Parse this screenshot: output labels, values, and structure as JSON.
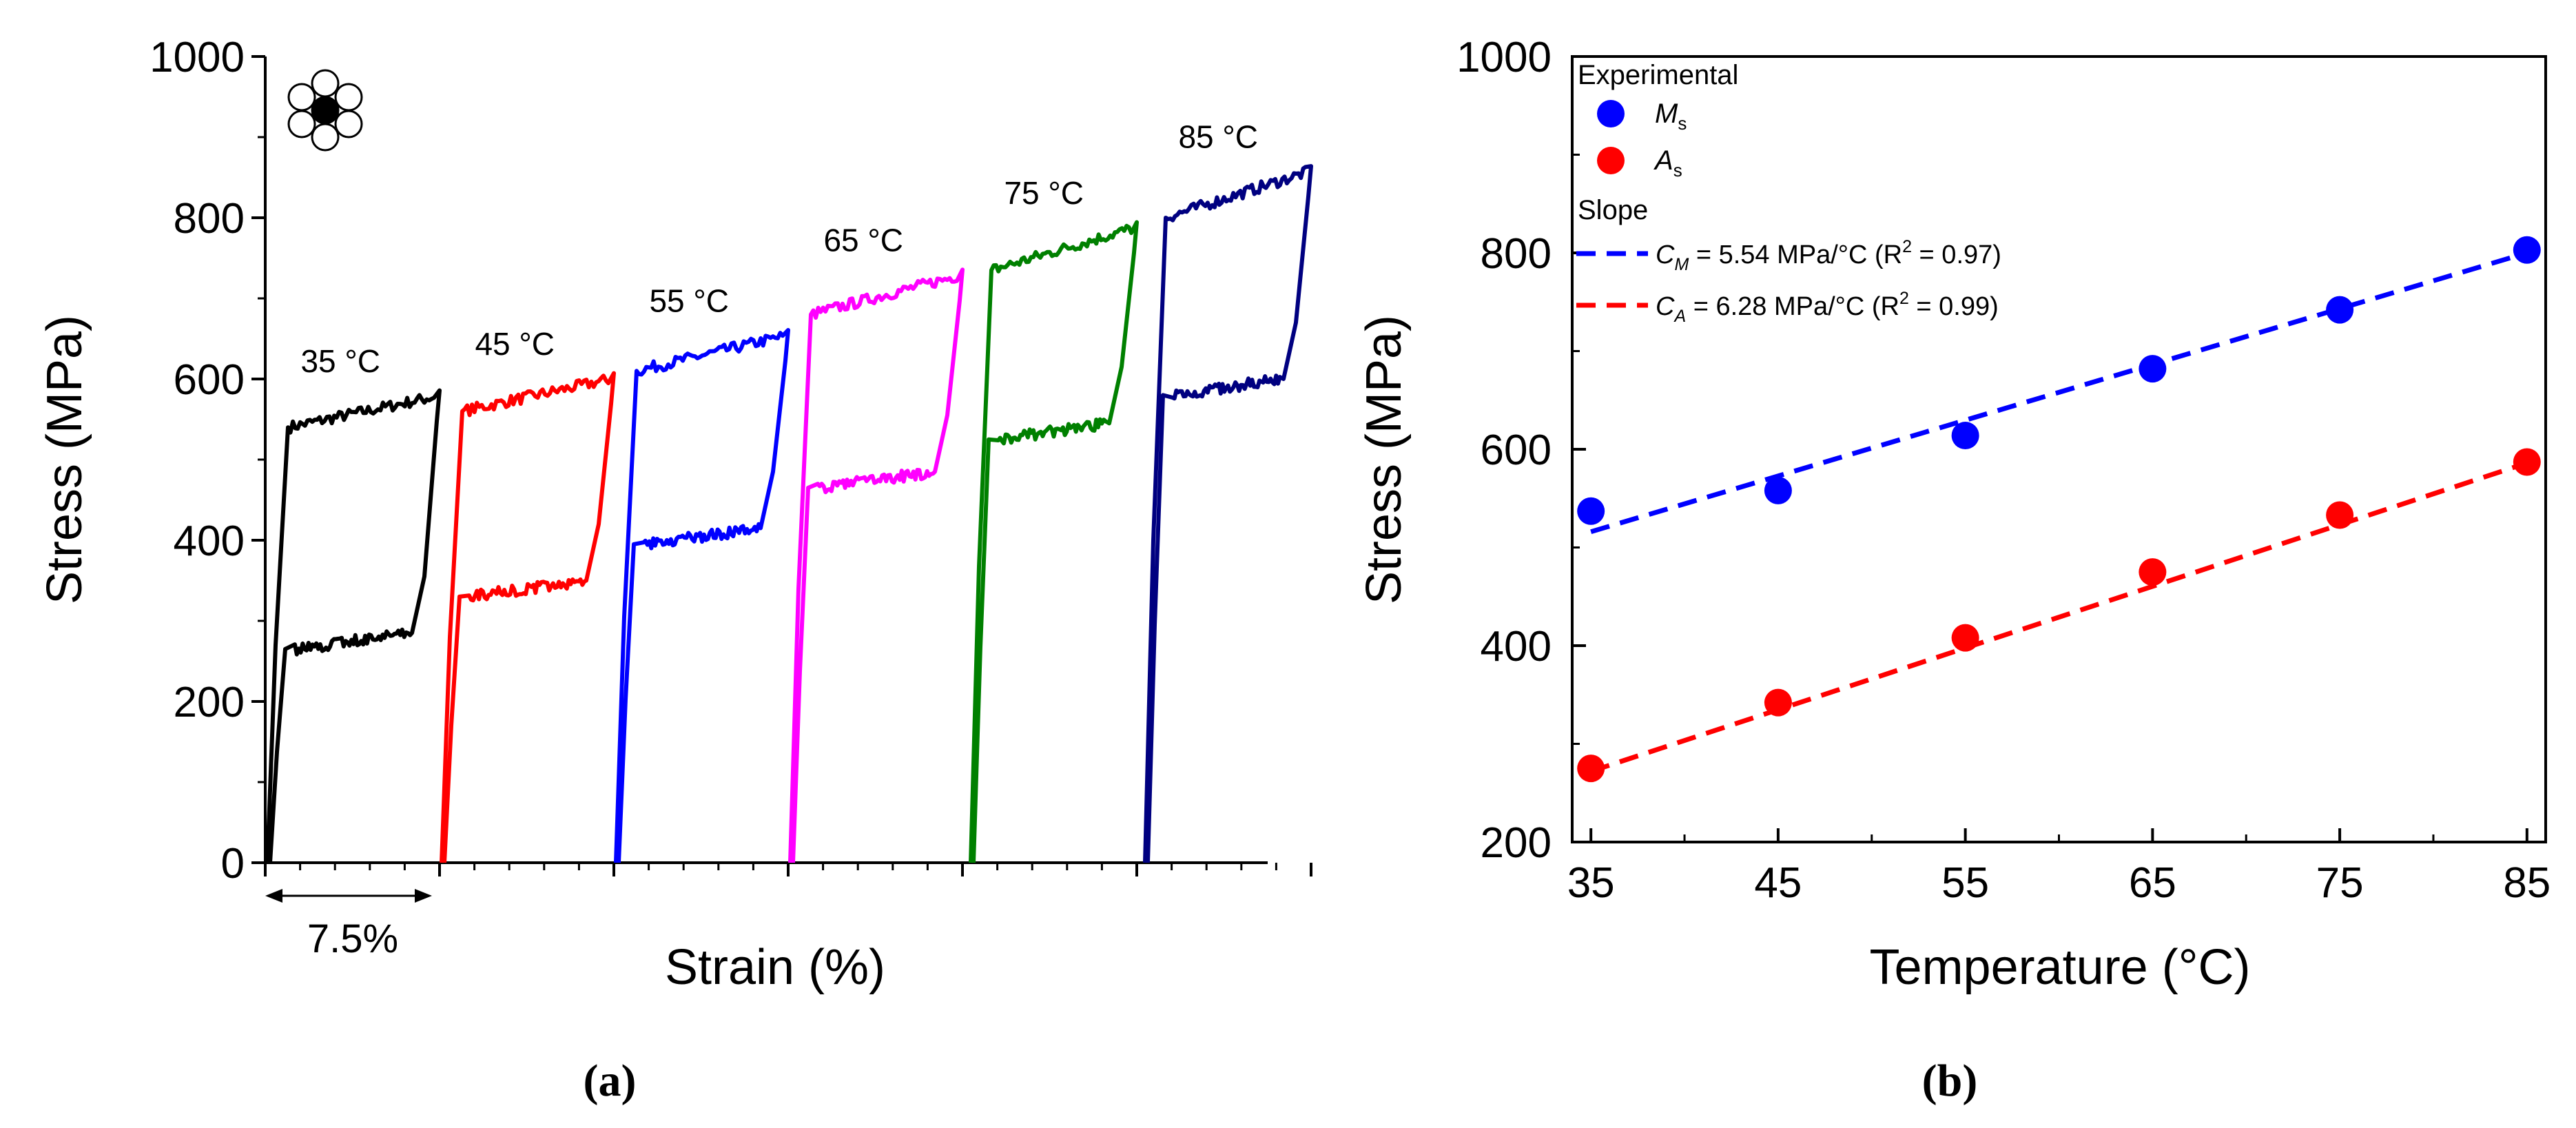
{
  "colors": {
    "c35": "#000000",
    "c45": "#ff0000",
    "c55": "#0000ff",
    "c65": "#ff00ff",
    "c75": "#008000",
    "c85": "#000080",
    "ms": "#0000ff",
    "as": "#ff0000"
  },
  "chart_data": [
    {
      "panel": "(a)",
      "type": "line",
      "xlabel": "Strain (%)",
      "ylabel": "Stress (MPa)",
      "ylim": [
        0,
        1000
      ],
      "yticks": [
        0,
        200,
        400,
        600,
        800,
        1000
      ],
      "strain_per_cycle": 7.5,
      "scale_bar_label": "7.5%",
      "icon": "seven-wire-strand-cross-section",
      "series": [
        {
          "name": "35 °C",
          "label": "35 °C",
          "color_key": "c35",
          "loading_plateau": 540,
          "unloading_plateau": 275
        },
        {
          "name": "45 °C",
          "label": "45 °C",
          "color_key": "c45",
          "loading_plateau": 560,
          "unloading_plateau": 340
        },
        {
          "name": "55 °C",
          "label": "55 °C",
          "color_key": "c55",
          "loading_plateau": 610,
          "unloading_plateau": 405
        },
        {
          "name": "65 °C",
          "label": "65 °C",
          "color_key": "c65",
          "loading_plateau": 680,
          "unloading_plateau": 475
        },
        {
          "name": "75 °C",
          "label": "75 °C",
          "color_key": "c75",
          "loading_plateau": 735,
          "unloading_plateau": 535
        },
        {
          "name": "85 °C",
          "label": "85 °C",
          "color_key": "c85",
          "loading_plateau": 800,
          "unloading_plateau": 590
        }
      ]
    },
    {
      "panel": "(b)",
      "type": "scatter",
      "xlabel": "Temperature (°C)",
      "ylabel": "Stress (MPa)",
      "xlim": [
        34,
        86
      ],
      "ylim": [
        200,
        1000
      ],
      "xticks": [
        35,
        45,
        55,
        65,
        75,
        85
      ],
      "yticks": [
        200,
        400,
        600,
        800,
        1000
      ],
      "x": [
        35,
        45,
        55,
        65,
        75,
        85
      ],
      "series": [
        {
          "name": "Ms",
          "symbol": "M",
          "subscript": "s",
          "color_key": "ms",
          "values": [
            537,
            558,
            614,
            682,
            742,
            803
          ]
        },
        {
          "name": "As",
          "symbol": "A",
          "subscript": "s",
          "color_key": "as",
          "values": [
            275,
            342,
            408,
            475,
            533,
            587
          ]
        }
      ],
      "fits": [
        {
          "series": "Ms",
          "symbol": "C",
          "subscript": "M",
          "slope": 5.54,
          "text": " = 5.54 MPa/°C (R",
          "r2_text": " = 0.97)",
          "start": 516,
          "end": 800,
          "color_key": "ms"
        },
        {
          "series": "As",
          "symbol": "C",
          "subscript": "A",
          "slope": 6.28,
          "text": " = 6.28 MPa/°C (R",
          "r2_text": " = 0.99)",
          "start": 272,
          "end": 586,
          "color_key": "as"
        }
      ],
      "legend": {
        "experimental_title": "Experimental",
        "slope_title": "Slope",
        "sup": "2"
      }
    }
  ],
  "captions": {
    "a": "(a)",
    "b": "(b)"
  }
}
